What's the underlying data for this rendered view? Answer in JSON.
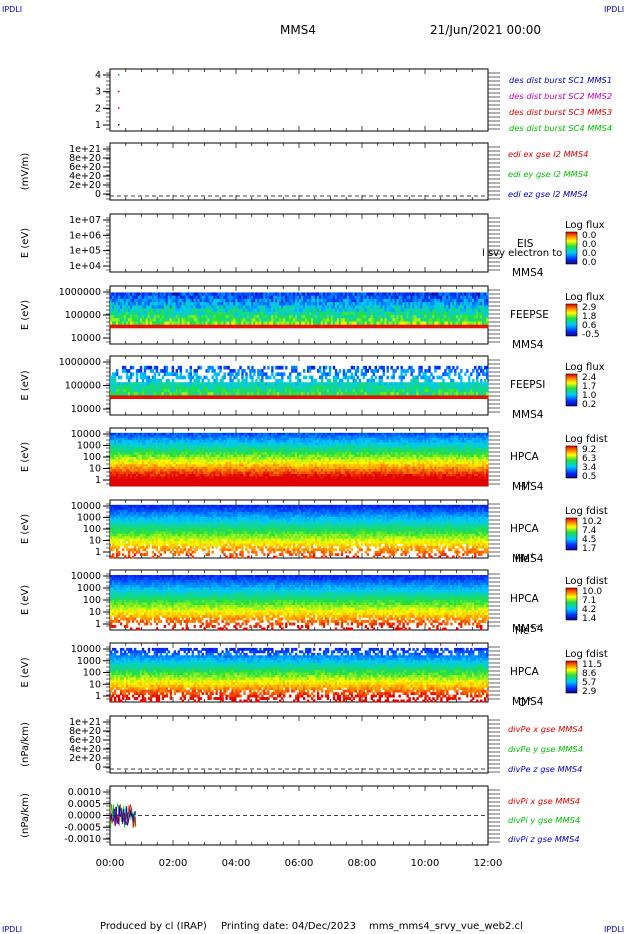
{
  "header": {
    "corner_label": "IPDLI",
    "title": "MMS4",
    "date": "21/Jun/2021 00:00"
  },
  "footer": {
    "produced": "Produced by cl (IRAP)",
    "printing": "Printing date: 04/Dec/2023",
    "file": "mms_mms4_srvy_vue_web2.cl"
  },
  "colors": {
    "blue": "#0000c8",
    "magenta": "#c000c0",
    "red": "#e00000",
    "green": "#00c000"
  },
  "time_axis": {
    "ticks": [
      "00:00",
      "02:00",
      "04:00",
      "06:00",
      "08:00",
      "10:00",
      "12:00"
    ]
  },
  "chart_data": [
    {
      "type": "scatter",
      "panel": "burst",
      "yticks": [
        "4",
        "3",
        "2",
        "1"
      ],
      "legend": [
        {
          "text": "des dist burst SC1 MMS1",
          "color": "#0000c8"
        },
        {
          "text": "des dist burst SC2 MMS2",
          "color": "#c000c0"
        },
        {
          "text": "des dist burst SC3 MMS3",
          "color": "#e00000"
        },
        {
          "text": "des dist burst SC4 MMS4",
          "color": "#00c000"
        }
      ],
      "points": [
        {
          "x": "00:10",
          "y": 4,
          "color": "#00c000"
        },
        {
          "x": "00:10",
          "y": 3,
          "color": "#e00000"
        },
        {
          "x": "00:10",
          "y": 2,
          "color": "#c000c0"
        },
        {
          "x": "00:10",
          "y": 1,
          "color": "#0000c8"
        }
      ]
    },
    {
      "type": "line",
      "panel": "edi",
      "ylabel": "(mV/m)",
      "yticks": [
        "1e+21",
        "8e+20",
        "6e+20",
        "4e+20",
        "2e+20",
        "0"
      ],
      "legend": [
        {
          "text": "edi ex gse l2 MMS4",
          "color": "#e00000"
        },
        {
          "text": "edi ey gse l2 MMS4",
          "color": "#00c000"
        },
        {
          "text": "edi ez gse l2 MMS4",
          "color": "#0000c8"
        }
      ]
    },
    {
      "type": "heatmap",
      "panel": "eis",
      "ylabel": "E (eV)",
      "yticks": [
        "1e+07",
        "1e+06",
        "1e+05",
        "1e+04"
      ],
      "instrument": "EIS",
      "overlay": "l svy electron to",
      "spacecraft": "MMS4",
      "cbar_title": "Log flux",
      "cbar_ticks": [
        "0.0",
        "0.0",
        "0.0",
        "0.0"
      ]
    },
    {
      "type": "heatmap",
      "panel": "feepse",
      "ylabel": "E (eV)",
      "yticks": [
        "1000000",
        "100000",
        "10000"
      ],
      "instrument": "FEEPSE",
      "spacecraft": "MMS4",
      "cbar_title": "Log flux",
      "cbar_ticks": [
        "2.9",
        "1.8",
        "0.6",
        "-0.5"
      ]
    },
    {
      "type": "heatmap",
      "panel": "feepsi",
      "ylabel": "E (eV)",
      "yticks": [
        "1000000",
        "100000",
        "10000"
      ],
      "instrument": "FEEPSI",
      "spacecraft": "MMS4",
      "cbar_title": "Log flux",
      "cbar_ticks": [
        "2.4",
        "1.7",
        "1.0",
        "0.2"
      ]
    },
    {
      "type": "heatmap",
      "panel": "hpca-h",
      "ylabel": "E (eV)",
      "yticks": [
        "10000",
        "1000",
        "100",
        "10",
        "1"
      ],
      "instrument": "HPCA",
      "spacecraft": "MMS4",
      "species": "H",
      "species_sup": "+",
      "cbar_title": "Log fdist",
      "cbar_ticks": [
        "9.2",
        "6.3",
        "3.4",
        "0.5"
      ]
    },
    {
      "type": "heatmap",
      "panel": "hpca-he",
      "ylabel": "E (eV)",
      "yticks": [
        "10000",
        "1000",
        "100",
        "10",
        "1"
      ],
      "instrument": "HPCA",
      "spacecraft": "MMS4",
      "species": "He",
      "species_sup": "+",
      "cbar_title": "Log fdist",
      "cbar_ticks": [
        "10.2",
        "7.4",
        "4.5",
        "1.7"
      ]
    },
    {
      "type": "heatmap",
      "panel": "hpca-hepp",
      "ylabel": "E (eV)",
      "yticks": [
        "10000",
        "1000",
        "100",
        "10",
        "1"
      ],
      "instrument": "HPCA",
      "spacecraft": "MMS4",
      "species": "He",
      "species_sup": "++",
      "cbar_title": "Log fdist",
      "cbar_ticks": [
        "10.0",
        "7.1",
        "4.2",
        "1.4"
      ]
    },
    {
      "type": "heatmap",
      "panel": "hpca-o",
      "ylabel": "E (eV)",
      "yticks": [
        "10000",
        "1000",
        "100",
        "10",
        "1"
      ],
      "instrument": "HPCA",
      "spacecraft": "MMS4",
      "species": "O",
      "species_sup": "+",
      "cbar_title": "Log fdist",
      "cbar_ticks": [
        "11.5",
        "8.6",
        "5.7",
        "2.9"
      ]
    },
    {
      "type": "line",
      "panel": "divpe",
      "ylabel": "(nPa/km)",
      "yticks": [
        "1e+21",
        "8e+20",
        "6e+20",
        "4e+20",
        "2e+20",
        "0"
      ],
      "legend": [
        {
          "text": "divPe x gse MMS4",
          "color": "#e00000"
        },
        {
          "text": "divPe y gse MMS4",
          "color": "#00c000"
        },
        {
          "text": "divPe z gse MMS4",
          "color": "#0000c8"
        }
      ]
    },
    {
      "type": "line",
      "panel": "divpi",
      "ylabel": "(nPa/km)",
      "yticks": [
        "0.0010",
        "0.0005",
        "0.0000",
        "-0.0005",
        "-0.0010"
      ],
      "ylim": [
        -0.0013,
        0.0013
      ],
      "legend": [
        {
          "text": "divPi x gse MMS4",
          "color": "#e00000"
        },
        {
          "text": "divPi y gse MMS4",
          "color": "#00c000"
        },
        {
          "text": "divPi z gse MMS4",
          "color": "#0000c8"
        }
      ],
      "x_range": [
        "00:00",
        "00:50"
      ]
    }
  ]
}
